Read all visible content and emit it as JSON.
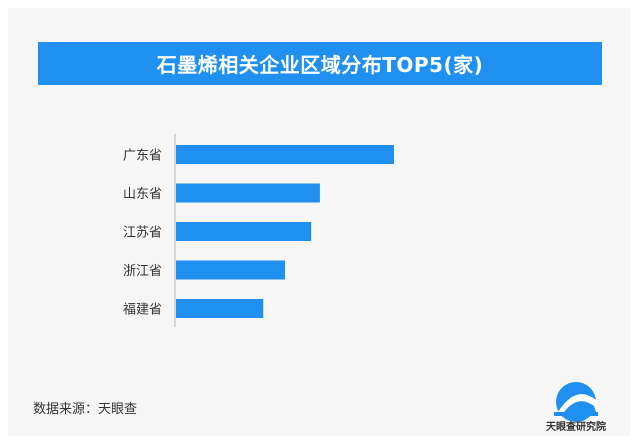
{
  "chart_data": {
    "type": "bar",
    "orientation": "horizontal",
    "title": "石墨烯相关企业区域分布TOP5(家)",
    "categories": [
      "广东省",
      "山东省",
      "江苏省",
      "浙江省",
      "福建省"
    ],
    "values": [
      100,
      66,
      62,
      50,
      40
    ],
    "bar_color": "#1f8ff0",
    "grid": false,
    "x_axis_visible": false
  },
  "footer": {
    "source": "数据来源：天眼查",
    "logo_text": "天眼查研究院"
  },
  "colors": {
    "accent": "#1f8ff0",
    "background": "#f6f6f6"
  }
}
